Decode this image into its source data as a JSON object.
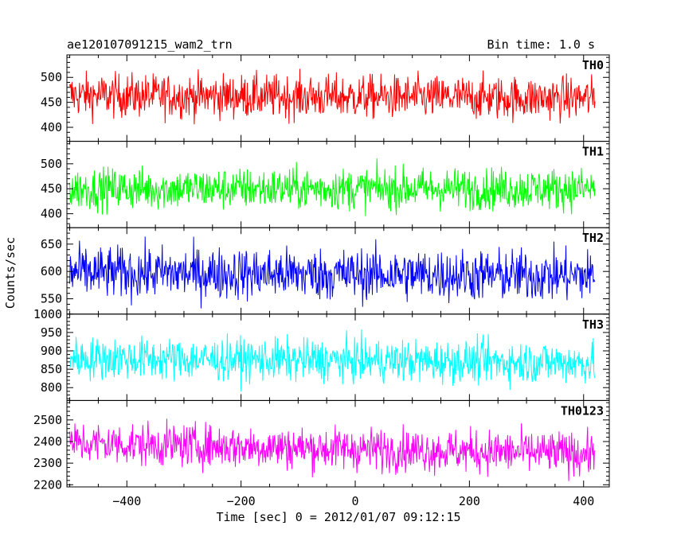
{
  "header": {
    "title": "ae120107091215_wam2_trn",
    "bin_time": "Bin time: 1.0 s"
  },
  "chart_data": {
    "type": "line",
    "xlabel": "Time [sec] 0 = 2012/01/07 09:12:15",
    "ylabel": "Counts/sec",
    "xlim": [
      -505,
      445
    ],
    "xdata_range": [
      -500,
      420
    ],
    "bin": 1.0,
    "xticks": [
      -400,
      -200,
      0,
      200,
      400
    ],
    "xtick_labels": [
      "−400",
      "−200",
      "0",
      "200",
      "400"
    ],
    "panels": [
      {
        "name": "TH0",
        "color": "#ff0000",
        "ylim": [
          372,
          545
        ],
        "yticks": [
          400,
          450,
          500
        ],
        "mean": 464,
        "spread": 22,
        "trend": -6
      },
      {
        "name": "TH1",
        "color": "#00ff00",
        "ylim": [
          372,
          545
        ],
        "yticks": [
          400,
          450,
          500
        ],
        "mean": 450,
        "spread": 21,
        "trend": 0
      },
      {
        "name": "TH2",
        "color": "#0000ff",
        "ylim": [
          522,
          680
        ],
        "yticks": [
          550,
          600,
          650
        ],
        "mean": 598,
        "spread": 24,
        "trend": -6
      },
      {
        "name": "TH3",
        "color": "#00ffff",
        "ylim": [
          765,
          1000
        ],
        "yticks": [
          800,
          850,
          900,
          950,
          1000
        ],
        "mean": 880,
        "spread": 29,
        "trend": -12
      },
      {
        "name": "TH0123",
        "color": "#ff00ff",
        "ylim": [
          2190,
          2590
        ],
        "yticks": [
          2200,
          2300,
          2400,
          2500
        ],
        "mean": 2393,
        "spread": 50,
        "trend": -50
      }
    ]
  }
}
